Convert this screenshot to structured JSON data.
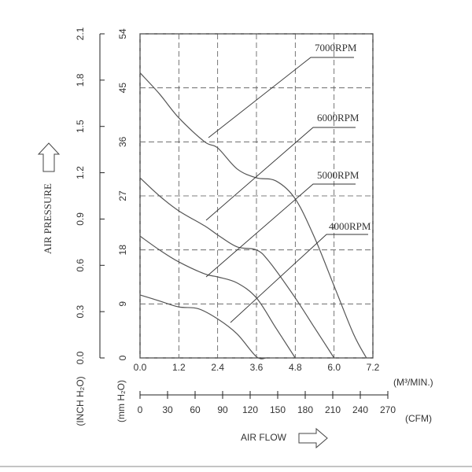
{
  "chart_data": {
    "type": "line",
    "y_label": "AIR PRESSURE",
    "y_unit": "(mm H₂O)",
    "y2_unit": "(INCH H₂O)",
    "x_label": "AIR FLOW",
    "x_unit": "(M³/MIN.)",
    "x2_unit": "(CFM)",
    "xlim": [
      0,
      7.2
    ],
    "xticks": [
      {
        "value": 0,
        "label": "0.0"
      },
      1.2,
      2.4,
      3.6,
      4.8,
      {
        "value": 6,
        "label": "6.0"
      },
      7.2
    ],
    "x2lim": [
      0,
      270
    ],
    "x2ticks": [
      0,
      30,
      60,
      90,
      120,
      150,
      180,
      210,
      240,
      270
    ],
    "ylim": [
      0,
      54
    ],
    "yticks": [
      0,
      9,
      18,
      27,
      36,
      45,
      54
    ],
    "y2lim": [
      0,
      2.1
    ],
    "y2ticks": [
      {
        "value": 0,
        "label": "0.0"
      },
      0.3,
      0.6,
      0.9,
      1.2,
      1.5,
      1.8,
      2.1
    ],
    "grid": true,
    "series": [
      {
        "name": "7000RPM",
        "color": "#555555",
        "x": [
          0,
          0.6,
          1.2,
          2.0,
          2.4,
          3.0,
          3.6,
          4.2,
          4.8,
          5.4,
          6.0,
          6.6,
          7.0
        ],
        "values": [
          47.5,
          44,
          40,
          36,
          35,
          31.5,
          30,
          29.5,
          26.5,
          20,
          12,
          4,
          0
        ]
      },
      {
        "name": "6000RPM",
        "color": "#555555",
        "x": [
          0,
          0.6,
          1.2,
          2.0,
          2.4,
          3.0,
          3.6,
          4.0,
          4.8,
          5.4,
          6.0
        ],
        "values": [
          30,
          27,
          24.5,
          22,
          20.5,
          18.5,
          18,
          16,
          10,
          5,
          0
        ]
      },
      {
        "name": "5000RPM",
        "color": "#555555",
        "x": [
          0,
          0.6,
          1.2,
          2.0,
          2.4,
          3.0,
          3.6,
          4.2,
          4.8
        ],
        "values": [
          20.3,
          18,
          16,
          14,
          13.5,
          12.5,
          10,
          5,
          0
        ]
      },
      {
        "name": "4000RPM",
        "color": "#555555",
        "x": [
          0,
          0.6,
          1.2,
          1.8,
          2.4,
          3.0,
          3.6,
          3.9
        ],
        "values": [
          10.5,
          9.5,
          8.5,
          8.2,
          6.5,
          4,
          0.2,
          0
        ]
      }
    ]
  }
}
